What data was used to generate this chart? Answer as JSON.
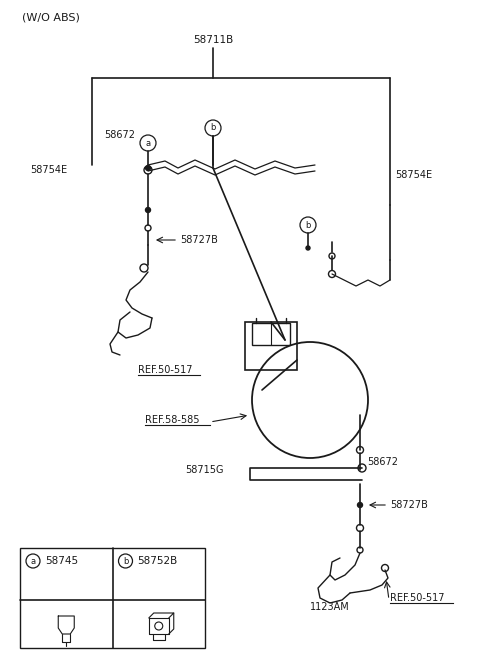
{
  "bg_color": "#ffffff",
  "line_color": "#1a1a1a",
  "text_color": "#1a1a1a",
  "fig_width": 4.8,
  "fig_height": 6.55,
  "dpi": 100,
  "labels": {
    "wo_abs": "(W/O ABS)",
    "58711B": "58711B",
    "58672_top": "58672",
    "58754E_left": "58754E",
    "58754E_right": "58754E",
    "58727B_left": "58727B",
    "ref_50_517_left": "REF.50-517",
    "ref_58_585": "REF.58-585",
    "58715G": "58715G",
    "58672_bot": "58672",
    "58727B_bot": "58727B",
    "ref_50_517_bot": "REF.50-517",
    "1123AM": "1123AM",
    "legend_a_num": "58745",
    "legend_b_num": "58752B"
  }
}
